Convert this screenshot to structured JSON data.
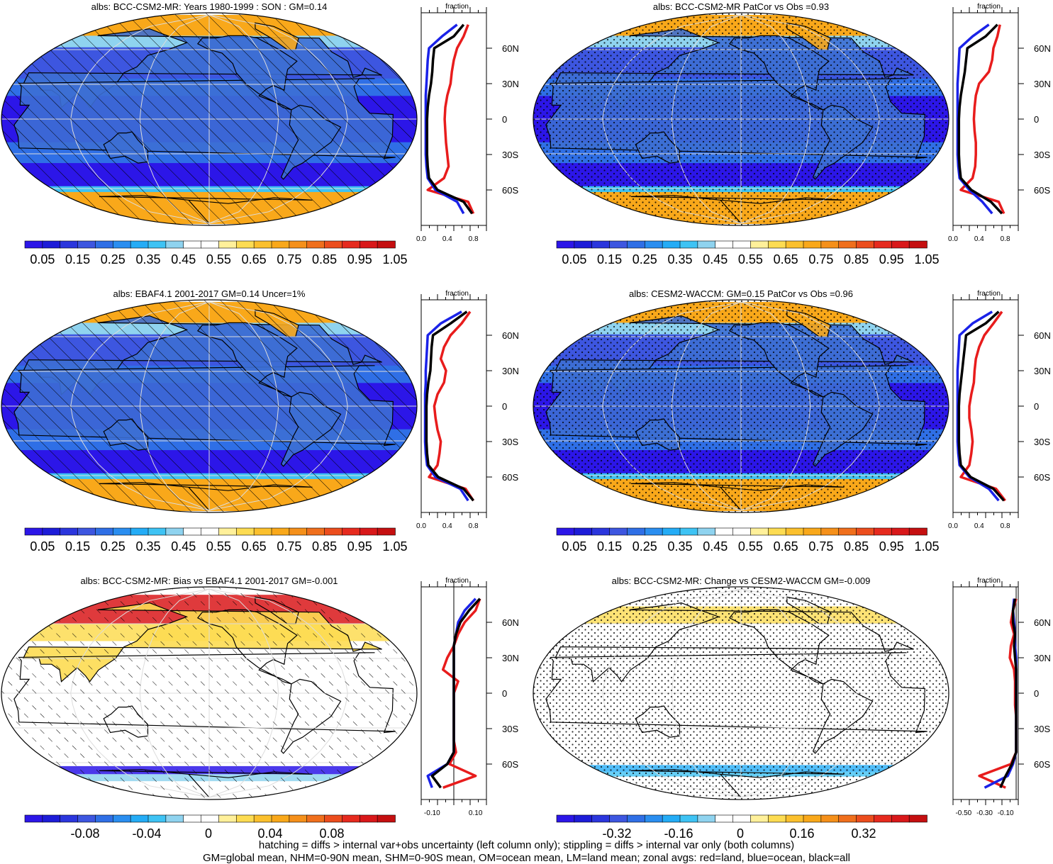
{
  "colors": {
    "abs_scale": [
      "#2c16e8",
      "#1d1cd8",
      "#2b36dd",
      "#3d56e0",
      "#2f6fe6",
      "#2a8ef0",
      "#24acf6",
      "#3ec3f4",
      "#8fd3ef",
      "#ffffff",
      "#ffffff",
      "#fff09a",
      "#fddc52",
      "#fbc02d",
      "#f9a81a",
      "#f5901a",
      "#f06f1c",
      "#ec4d1d",
      "#e62a1e",
      "#d9181a",
      "#c50f10"
    ],
    "diff_scale": [
      "#2c16e8",
      "#1d1cd8",
      "#2b36dd",
      "#3d56e0",
      "#2f6fe6",
      "#2a8ef0",
      "#24acf6",
      "#3ec3f4",
      "#8fd3ef",
      "#ffffff",
      "#ffffff",
      "#fff09a",
      "#fddc52",
      "#fbc02d",
      "#f9a81a",
      "#f5901a",
      "#f06f1c",
      "#ec4d1d",
      "#e62a1e",
      "#d9181a",
      "#c50f10"
    ],
    "land": "#e81c1c",
    "ocean": "#1a22e8",
    "all": "#000000"
  },
  "colorbars": {
    "abs_labels": [
      "0.05",
      "0.15",
      "0.25",
      "0.35",
      "0.45",
      "0.55",
      "0.65",
      "0.75",
      "0.85",
      "0.95",
      "1.05"
    ],
    "bias_labels": [
      "-0.08",
      "-0.04",
      "0",
      "0.04",
      "0.08"
    ],
    "change_labels": [
      "-0.32",
      "-0.16",
      "0",
      "0.16",
      "0.32"
    ]
  },
  "zonal_axes": {
    "lat_labels": [
      "60N",
      "30N",
      "0",
      "30S",
      "60S"
    ],
    "abs_x_ticks": [
      "0.0",
      "0.4",
      "0.8"
    ],
    "bias_x_ticks": [
      "-0.10",
      "0.10"
    ],
    "change_x_ticks": [
      "-0.50",
      "-0.30",
      "-0.10"
    ],
    "x_title": "fraction"
  },
  "chart_data": [
    {
      "type": "heatmap",
      "title": "albs: BCC-CSM2-MR: Years 1980-1999 : SON : GM=0.14",
      "field": "model",
      "pattern": "hatch",
      "zonal": {
        "xlim": [
          0,
          1.0
        ],
        "xlabel": "fraction",
        "lats": [
          80,
          70,
          60,
          50,
          40,
          30,
          20,
          10,
          0,
          -10,
          -20,
          -30,
          -40,
          -50,
          -60,
          -70,
          -80
        ],
        "land": [
          0.72,
          0.65,
          0.55,
          0.5,
          0.47,
          0.45,
          0.4,
          0.37,
          0.36,
          0.37,
          0.38,
          0.4,
          0.42,
          0.35,
          0.1,
          0.72,
          0.8
        ],
        "ocean": [
          0.55,
          0.32,
          0.12,
          0.1,
          0.09,
          0.08,
          0.07,
          0.07,
          0.07,
          0.07,
          0.07,
          0.07,
          0.08,
          0.1,
          0.22,
          0.55,
          0.65
        ],
        "all": [
          0.65,
          0.5,
          0.2,
          0.18,
          0.17,
          0.15,
          0.12,
          0.1,
          0.09,
          0.09,
          0.09,
          0.09,
          0.1,
          0.12,
          0.25,
          0.65,
          0.78
        ]
      }
    },
    {
      "type": "heatmap",
      "title": "albs: BCC-CSM2-MR PatCor vs Obs =0.93",
      "field": "model",
      "pattern": "stipple",
      "zonal": {
        "xlim": [
          0,
          1.0
        ],
        "xlabel": "fraction",
        "lats": [
          80,
          70,
          60,
          50,
          40,
          30,
          20,
          10,
          0,
          -10,
          -20,
          -30,
          -40,
          -50,
          -60,
          -70,
          -80
        ],
        "land": [
          0.72,
          0.68,
          0.62,
          0.6,
          0.55,
          0.4,
          0.35,
          0.33,
          0.32,
          0.33,
          0.35,
          0.35,
          0.34,
          0.3,
          0.12,
          0.7,
          0.78
        ],
        "ocean": [
          0.55,
          0.3,
          0.1,
          0.09,
          0.08,
          0.07,
          0.07,
          0.07,
          0.07,
          0.07,
          0.07,
          0.07,
          0.08,
          0.1,
          0.25,
          0.45,
          0.6
        ],
        "all": [
          0.68,
          0.5,
          0.22,
          0.2,
          0.18,
          0.15,
          0.12,
          0.1,
          0.09,
          0.09,
          0.09,
          0.09,
          0.1,
          0.12,
          0.28,
          0.58,
          0.75
        ]
      }
    },
    {
      "type": "heatmap",
      "title": "albs: EBAF4.1 2001-2017 GM=0.14 Uncer=1%",
      "field": "obs",
      "pattern": "hatch",
      "zonal": {
        "xlim": [
          0,
          1.0
        ],
        "xlabel": "fraction",
        "lats": [
          80,
          70,
          60,
          50,
          40,
          30,
          20,
          10,
          0,
          -10,
          -20,
          -30,
          -40,
          -50,
          -60,
          -70,
          -80
        ],
        "land": [
          0.75,
          0.62,
          0.45,
          0.35,
          0.3,
          0.38,
          0.35,
          0.25,
          0.2,
          0.22,
          0.25,
          0.3,
          0.28,
          0.25,
          0.12,
          0.68,
          0.8
        ],
        "ocean": [
          0.62,
          0.3,
          0.1,
          0.09,
          0.08,
          0.07,
          0.07,
          0.06,
          0.06,
          0.06,
          0.06,
          0.06,
          0.07,
          0.09,
          0.22,
          0.6,
          0.72
        ],
        "all": [
          0.7,
          0.45,
          0.18,
          0.16,
          0.15,
          0.14,
          0.11,
          0.09,
          0.08,
          0.08,
          0.08,
          0.08,
          0.09,
          0.11,
          0.26,
          0.65,
          0.8
        ]
      }
    },
    {
      "type": "heatmap",
      "title": "albs: CESM2-WACCM: GM=0.15 PatCor vs Obs =0.96",
      "field": "model",
      "pattern": "stipple",
      "zonal": {
        "xlim": [
          0,
          1.0
        ],
        "xlabel": "fraction",
        "lats": [
          80,
          70,
          60,
          50,
          40,
          30,
          20,
          10,
          0,
          -10,
          -20,
          -30,
          -40,
          -50,
          -60,
          -70,
          -80
        ],
        "land": [
          0.75,
          0.62,
          0.48,
          0.4,
          0.35,
          0.33,
          0.32,
          0.28,
          0.25,
          0.25,
          0.28,
          0.3,
          0.28,
          0.25,
          0.12,
          0.66,
          0.8
        ],
        "ocean": [
          0.6,
          0.3,
          0.1,
          0.09,
          0.08,
          0.07,
          0.07,
          0.07,
          0.07,
          0.07,
          0.07,
          0.07,
          0.08,
          0.1,
          0.25,
          0.55,
          0.7
        ],
        "all": [
          0.7,
          0.5,
          0.2,
          0.18,
          0.16,
          0.14,
          0.12,
          0.1,
          0.09,
          0.09,
          0.09,
          0.09,
          0.1,
          0.12,
          0.27,
          0.62,
          0.78
        ]
      }
    },
    {
      "type": "heatmap",
      "title": "albs: BCC-CSM2-MR: Bias vs EBAF4.1 2001-2017  GM=-0.001",
      "field": "bias",
      "pattern": "hatch",
      "zonal": {
        "xlim": [
          -0.15,
          0.15
        ],
        "xlabel": "fraction",
        "lats": [
          80,
          70,
          60,
          50,
          40,
          30,
          20,
          10,
          0,
          -10,
          -20,
          -30,
          -40,
          -50,
          -60,
          -70,
          -80
        ],
        "land": [
          0.12,
          0.1,
          0.05,
          0.02,
          0.0,
          -0.03,
          -0.05,
          0.02,
          0.0,
          0.0,
          0.0,
          0.0,
          0.0,
          0.01,
          -0.02,
          0.1,
          -0.05
        ],
        "ocean": [
          0.1,
          0.05,
          0.02,
          0.01,
          0.0,
          0.0,
          0.0,
          0.0,
          0.0,
          0.0,
          0.0,
          0.0,
          0.0,
          0.0,
          -0.03,
          -0.12,
          -0.1
        ],
        "all": [
          0.12,
          0.07,
          0.03,
          0.01,
          0.0,
          0.0,
          0.0,
          0.0,
          0.0,
          0.0,
          0.0,
          0.0,
          0.0,
          0.0,
          -0.03,
          -0.1,
          -0.06
        ]
      }
    },
    {
      "type": "heatmap",
      "title": "albs: BCC-CSM2-MR: Change vs CESM2-WACCM GM=-0.009",
      "field": "change",
      "pattern": "stipple",
      "zonal": {
        "xlim": [
          -0.6,
          0.02
        ],
        "xlabel": "fraction",
        "lats": [
          80,
          70,
          60,
          50,
          40,
          30,
          20,
          10,
          0,
          -10,
          -20,
          -30,
          -40,
          -50,
          -60,
          -70,
          -80
        ],
        "land": [
          0.0,
          -0.03,
          -0.05,
          -0.02,
          -0.05,
          -0.06,
          -0.02,
          -0.01,
          -0.01,
          -0.01,
          0.0,
          0.0,
          0.0,
          0.0,
          -0.05,
          -0.35,
          -0.1
        ],
        "ocean": [
          -0.02,
          -0.03,
          -0.02,
          -0.01,
          -0.01,
          0.0,
          0.0,
          0.0,
          0.0,
          0.0,
          0.0,
          0.0,
          0.0,
          0.0,
          -0.03,
          -0.08,
          -0.3
        ],
        "all": [
          -0.01,
          -0.03,
          -0.03,
          -0.01,
          -0.02,
          -0.01,
          0.0,
          0.0,
          0.0,
          0.0,
          0.0,
          0.0,
          0.0,
          0.0,
          -0.04,
          -0.1,
          -0.15
        ]
      }
    }
  ],
  "footer": {
    "line1": "hatching = diffs > internal var+obs uncertainty (left column only); stippling = diffs > internal var only (both columns)",
    "line2": "GM=global mean, NHM=0-90N mean, SHM=0-90S mean, OM=ocean mean, LM=land mean; zonal avgs: red=land, blue=ocean, black=all"
  }
}
